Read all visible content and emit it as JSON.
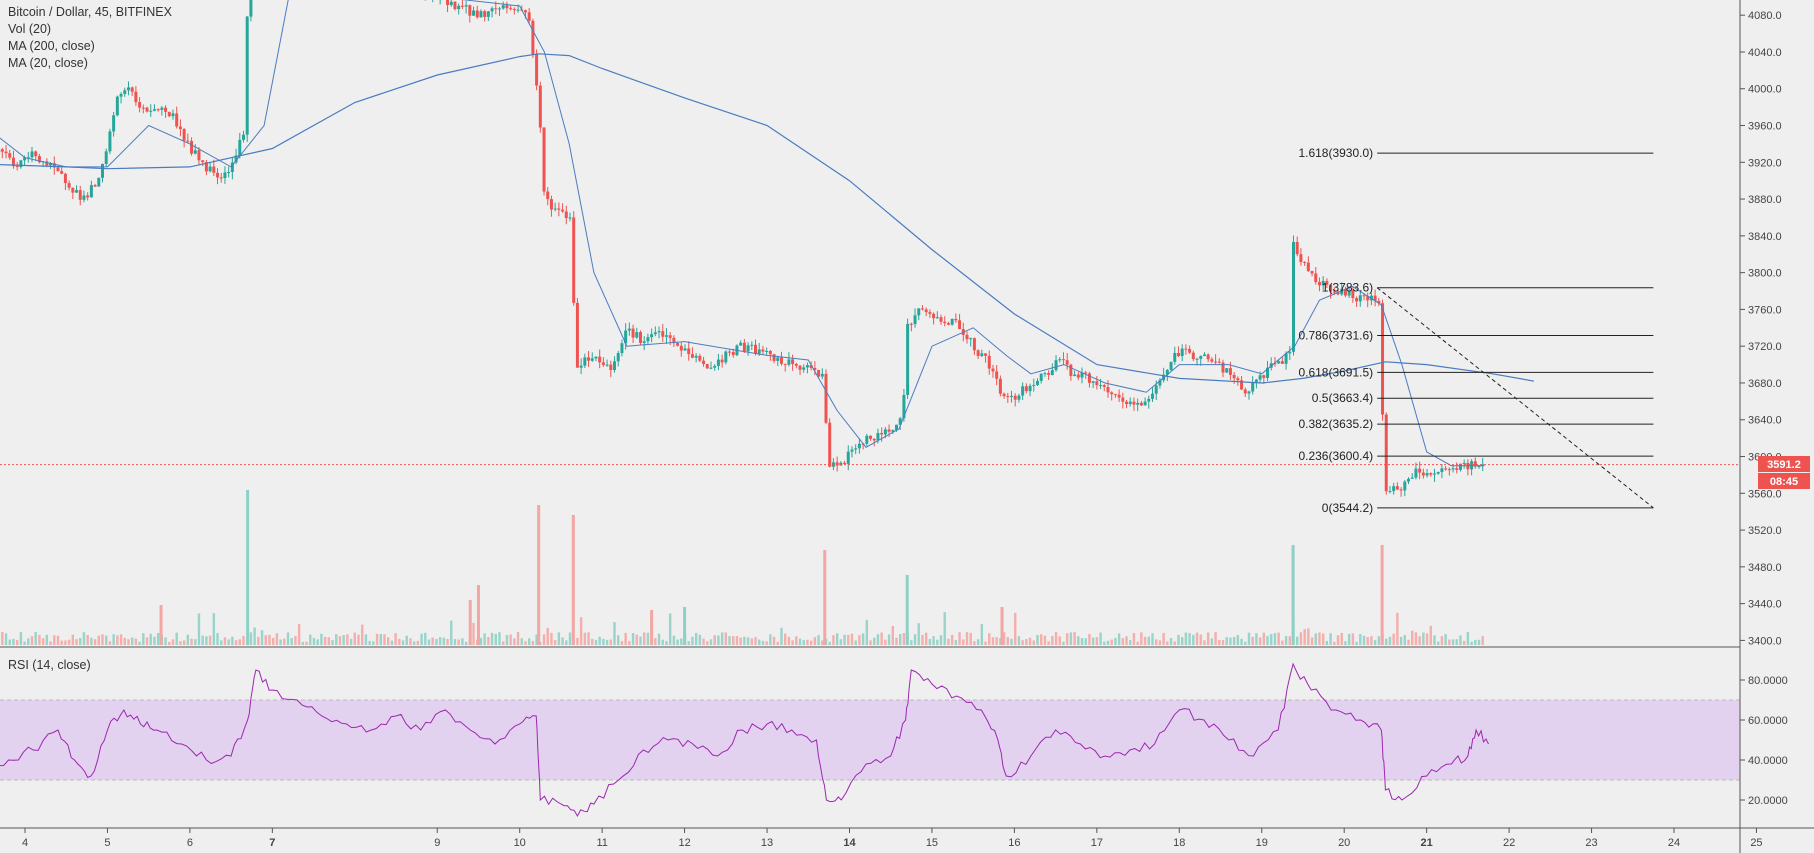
{
  "legend": {
    "symbol": "Bitcoin / Dollar, 45, BITFINEX",
    "vol": "Vol (20)",
    "ma200": "MA (200, close)",
    "ma20": "MA (20, close)",
    "rsi": "RSI (14, close)"
  },
  "colors": {
    "up": "#26a69a",
    "down": "#ef5350",
    "ma": "#4a7cc0",
    "rsi": "#9c27b0",
    "rsi_band": "#e3d2ef",
    "price_tag": "#ef5350"
  },
  "chart_data": {
    "type": "candlestick",
    "price_axis": {
      "ylim": [
        3395,
        4090
      ],
      "ticks": [
        "4080.0",
        "4040.0",
        "4000.0",
        "3960.0",
        "3920.0",
        "3880.0",
        "3840.0",
        "3800.0",
        "3760.0",
        "3720.0",
        "3680.0",
        "3640.0",
        "3600.0",
        "3560.0",
        "3520.0",
        "3480.0",
        "3440.0",
        "3400.0"
      ]
    },
    "x_axis": {
      "labels": [
        "4",
        "5",
        "6",
        "7",
        "9",
        "10",
        "11",
        "12",
        "13",
        "14",
        "15",
        "16",
        "17",
        "18",
        "19",
        "20",
        "21",
        "22",
        "23",
        "24",
        "25"
      ],
      "bold": [
        "7",
        "14",
        "21"
      ]
    },
    "current_price": "3591.2",
    "countdown": "08:45",
    "fib": {
      "levels": [
        {
          "label": "1.618(3930.0)",
          "value": 3930.0
        },
        {
          "label": "1(3783.6)",
          "value": 3783.6
        },
        {
          "label": "0.786(3731.6)",
          "value": 3731.6
        },
        {
          "label": "0.618(3691.5)",
          "value": 3691.5
        },
        {
          "label": "0.5(3663.4)",
          "value": 3663.4
        },
        {
          "label": "0.382(3635.2)",
          "value": 3635.2
        },
        {
          "label": "0.236(3600.4)",
          "value": 3600.4
        },
        {
          "label": "0(3544.2)",
          "value": 3544.2
        }
      ],
      "day_start": 20.4,
      "day_end": 23.75
    },
    "price_path": [
      [
        3.5,
        3925
      ],
      [
        3.7,
        3935
      ],
      [
        3.9,
        3915
      ],
      [
        4.1,
        3930
      ],
      [
        4.3,
        3915
      ],
      [
        4.5,
        3900
      ],
      [
        4.7,
        3880
      ],
      [
        4.9,
        3900
      ],
      [
        5.0,
        3935
      ],
      [
        5.1,
        3985
      ],
      [
        5.25,
        4005
      ],
      [
        5.4,
        3975
      ],
      [
        5.6,
        3980
      ],
      [
        5.8,
        3970
      ],
      [
        6.0,
        3935
      ],
      [
        6.2,
        3915
      ],
      [
        6.4,
        3905
      ],
      [
        6.55,
        3925
      ],
      [
        6.65,
        3955
      ],
      [
        6.7,
        4090
      ],
      [
        6.9,
        4120
      ],
      [
        7.3,
        4130
      ],
      [
        7.8,
        4110
      ],
      [
        8.5,
        4110
      ],
      [
        9.0,
        4100
      ],
      [
        9.5,
        4080
      ],
      [
        9.8,
        4090
      ],
      [
        10.0,
        4085
      ],
      [
        10.1,
        4085
      ],
      [
        10.23,
        3985
      ],
      [
        10.3,
        3880
      ],
      [
        10.5,
        3865
      ],
      [
        10.62,
        3860
      ],
      [
        10.68,
        3700
      ],
      [
        10.9,
        3710
      ],
      [
        11.1,
        3695
      ],
      [
        11.3,
        3740
      ],
      [
        11.5,
        3725
      ],
      [
        11.7,
        3735
      ],
      [
        11.9,
        3720
      ],
      [
        12.1,
        3710
      ],
      [
        12.3,
        3695
      ],
      [
        12.5,
        3710
      ],
      [
        12.7,
        3720
      ],
      [
        12.9,
        3715
      ],
      [
        13.1,
        3705
      ],
      [
        13.3,
        3700
      ],
      [
        13.5,
        3695
      ],
      [
        13.68,
        3690
      ],
      [
        13.75,
        3590
      ],
      [
        13.9,
        3590
      ],
      [
        14.1,
        3615
      ],
      [
        14.3,
        3620
      ],
      [
        14.5,
        3630
      ],
      [
        14.65,
        3650
      ],
      [
        14.7,
        3740
      ],
      [
        14.85,
        3760
      ],
      [
        15.05,
        3750
      ],
      [
        15.3,
        3745
      ],
      [
        15.5,
        3720
      ],
      [
        15.7,
        3700
      ],
      [
        15.85,
        3665
      ],
      [
        16.0,
        3665
      ],
      [
        16.2,
        3680
      ],
      [
        16.4,
        3690
      ],
      [
        16.55,
        3710
      ],
      [
        16.7,
        3690
      ],
      [
        16.9,
        3685
      ],
      [
        17.1,
        3670
      ],
      [
        17.3,
        3660
      ],
      [
        17.5,
        3655
      ],
      [
        17.65,
        3665
      ],
      [
        17.8,
        3690
      ],
      [
        18.0,
        3715
      ],
      [
        18.2,
        3710
      ],
      [
        18.4,
        3705
      ],
      [
        18.6,
        3690
      ],
      [
        18.8,
        3670
      ],
      [
        18.95,
        3680
      ],
      [
        19.1,
        3700
      ],
      [
        19.25,
        3705
      ],
      [
        19.35,
        3710
      ],
      [
        19.38,
        3830
      ],
      [
        19.5,
        3810
      ],
      [
        19.7,
        3790
      ],
      [
        19.9,
        3780
      ],
      [
        20.1,
        3775
      ],
      [
        20.3,
        3770
      ],
      [
        20.43,
        3770
      ],
      [
        20.46,
        3660
      ],
      [
        20.5,
        3565
      ],
      [
        20.7,
        3565
      ],
      [
        20.9,
        3585
      ],
      [
        21.1,
        3580
      ],
      [
        21.3,
        3585
      ],
      [
        21.5,
        3590
      ],
      [
        21.7,
        3591.2
      ]
    ],
    "ma200_path": [
      [
        3.5,
        3918
      ],
      [
        4.5,
        3915
      ],
      [
        5.0,
        3913
      ],
      [
        6.0,
        3915
      ],
      [
        7.0,
        3935
      ],
      [
        8.0,
        3985
      ],
      [
        9.0,
        4015
      ],
      [
        10.0,
        4035
      ],
      [
        10.23,
        4038
      ],
      [
        10.6,
        4036
      ],
      [
        11.0,
        4022
      ],
      [
        12.0,
        3990
      ],
      [
        13.0,
        3960
      ],
      [
        14.0,
        3900
      ],
      [
        15.0,
        3825
      ],
      [
        16.0,
        3755
      ],
      [
        17.0,
        3700
      ],
      [
        18.0,
        3685
      ],
      [
        19.0,
        3680
      ],
      [
        19.5,
        3685
      ],
      [
        20.0,
        3693
      ],
      [
        20.5,
        3703
      ],
      [
        21.0,
        3700
      ],
      [
        21.8,
        3690
      ],
      [
        22.3,
        3682
      ]
    ],
    "ma20_path": [
      [
        3.5,
        3960
      ],
      [
        4.0,
        3925
      ],
      [
        4.5,
        3915
      ],
      [
        5.0,
        3915
      ],
      [
        5.5,
        3960
      ],
      [
        6.0,
        3940
      ],
      [
        6.5,
        3915
      ],
      [
        6.9,
        3960
      ],
      [
        7.2,
        4100
      ],
      [
        8.0,
        4100
      ],
      [
        9.0,
        4100
      ],
      [
        10.0,
        4090
      ],
      [
        10.3,
        4040
      ],
      [
        10.6,
        3940
      ],
      [
        10.9,
        3800
      ],
      [
        11.3,
        3720
      ],
      [
        12.0,
        3725
      ],
      [
        13.0,
        3710
      ],
      [
        13.5,
        3705
      ],
      [
        13.85,
        3650
      ],
      [
        14.2,
        3610
      ],
      [
        14.6,
        3630
      ],
      [
        15.0,
        3720
      ],
      [
        15.5,
        3740
      ],
      [
        15.9,
        3710
      ],
      [
        16.2,
        3690
      ],
      [
        16.6,
        3700
      ],
      [
        17.1,
        3680
      ],
      [
        17.6,
        3670
      ],
      [
        18.0,
        3700
      ],
      [
        18.6,
        3700
      ],
      [
        19.0,
        3690
      ],
      [
        19.4,
        3720
      ],
      [
        19.7,
        3770
      ],
      [
        20.1,
        3785
      ],
      [
        20.45,
        3765
      ],
      [
        20.7,
        3700
      ],
      [
        21.0,
        3605
      ],
      [
        21.3,
        3590
      ],
      [
        21.7,
        3590
      ]
    ],
    "volume": {
      "ylim": [
        0,
        170
      ],
      "spikes": [
        {
          "x": 6.7,
          "v": 155,
          "dir": "up"
        },
        {
          "x": 10.23,
          "v": 140,
          "dir": "down"
        },
        {
          "x": 10.65,
          "v": 130,
          "dir": "down"
        },
        {
          "x": 9.5,
          "v": 60,
          "dir": "down"
        },
        {
          "x": 13.7,
          "v": 95,
          "dir": "down"
        },
        {
          "x": 14.7,
          "v": 70,
          "dir": "up"
        },
        {
          "x": 19.38,
          "v": 100,
          "dir": "up"
        },
        {
          "x": 20.46,
          "v": 100,
          "dir": "down"
        },
        {
          "x": 5.65,
          "v": 40,
          "dir": "down"
        },
        {
          "x": 9.4,
          "v": 45,
          "dir": "down"
        },
        {
          "x": 12.0,
          "v": 38,
          "dir": "up"
        },
        {
          "x": 15.85,
          "v": 38,
          "dir": "down"
        },
        {
          "x": 11.6,
          "v": 35,
          "dir": "down"
        }
      ]
    },
    "rsi": {
      "ylim": [
        10,
        90
      ],
      "upper": 70,
      "lower": 30,
      "ticks": [
        "80.0000",
        "60.0000",
        "40.0000",
        "20.0000"
      ],
      "path": [
        [
          3.5,
          35
        ],
        [
          3.8,
          40
        ],
        [
          4.1,
          45
        ],
        [
          4.4,
          55
        ],
        [
          4.6,
          40
        ],
        [
          4.8,
          32
        ],
        [
          5.0,
          55
        ],
        [
          5.2,
          65
        ],
        [
          5.4,
          58
        ],
        [
          5.6,
          55
        ],
        [
          5.9,
          48
        ],
        [
          6.2,
          40
        ],
        [
          6.5,
          42
        ],
        [
          6.7,
          60
        ],
        [
          6.8,
          85
        ],
        [
          7.0,
          75
        ],
        [
          7.3,
          70
        ],
        [
          7.6,
          62
        ],
        [
          7.9,
          58
        ],
        [
          8.2,
          55
        ],
        [
          8.5,
          62
        ],
        [
          8.8,
          55
        ],
        [
          9.1,
          65
        ],
        [
          9.4,
          55
        ],
        [
          9.7,
          48
        ],
        [
          10.0,
          58
        ],
        [
          10.2,
          62
        ],
        [
          10.25,
          20
        ],
        [
          10.5,
          18
        ],
        [
          10.7,
          12
        ],
        [
          10.9,
          18
        ],
        [
          11.2,
          30
        ],
        [
          11.5,
          45
        ],
        [
          11.8,
          50
        ],
        [
          12.1,
          48
        ],
        [
          12.4,
          42
        ],
        [
          12.7,
          55
        ],
        [
          13.0,
          58
        ],
        [
          13.3,
          55
        ],
        [
          13.6,
          50
        ],
        [
          13.72,
          20
        ],
        [
          13.9,
          20
        ],
        [
          14.2,
          38
        ],
        [
          14.5,
          42
        ],
        [
          14.68,
          60
        ],
        [
          14.75,
          85
        ],
        [
          15.0,
          78
        ],
        [
          15.3,
          72
        ],
        [
          15.6,
          65
        ],
        [
          15.8,
          50
        ],
        [
          15.9,
          32
        ],
        [
          16.2,
          42
        ],
        [
          16.5,
          55
        ],
        [
          16.8,
          48
        ],
        [
          17.1,
          42
        ],
        [
          17.4,
          45
        ],
        [
          17.7,
          48
        ],
        [
          18.0,
          65
        ],
        [
          18.3,
          60
        ],
        [
          18.6,
          50
        ],
        [
          18.9,
          42
        ],
        [
          19.2,
          55
        ],
        [
          19.38,
          88
        ],
        [
          19.6,
          75
        ],
        [
          19.9,
          65
        ],
        [
          20.2,
          60
        ],
        [
          20.45,
          55
        ],
        [
          20.5,
          25
        ],
        [
          20.7,
          20
        ],
        [
          21.0,
          32
        ],
        [
          21.3,
          38
        ],
        [
          21.5,
          42
        ],
        [
          21.6,
          55
        ],
        [
          21.75,
          48
        ]
      ]
    }
  }
}
